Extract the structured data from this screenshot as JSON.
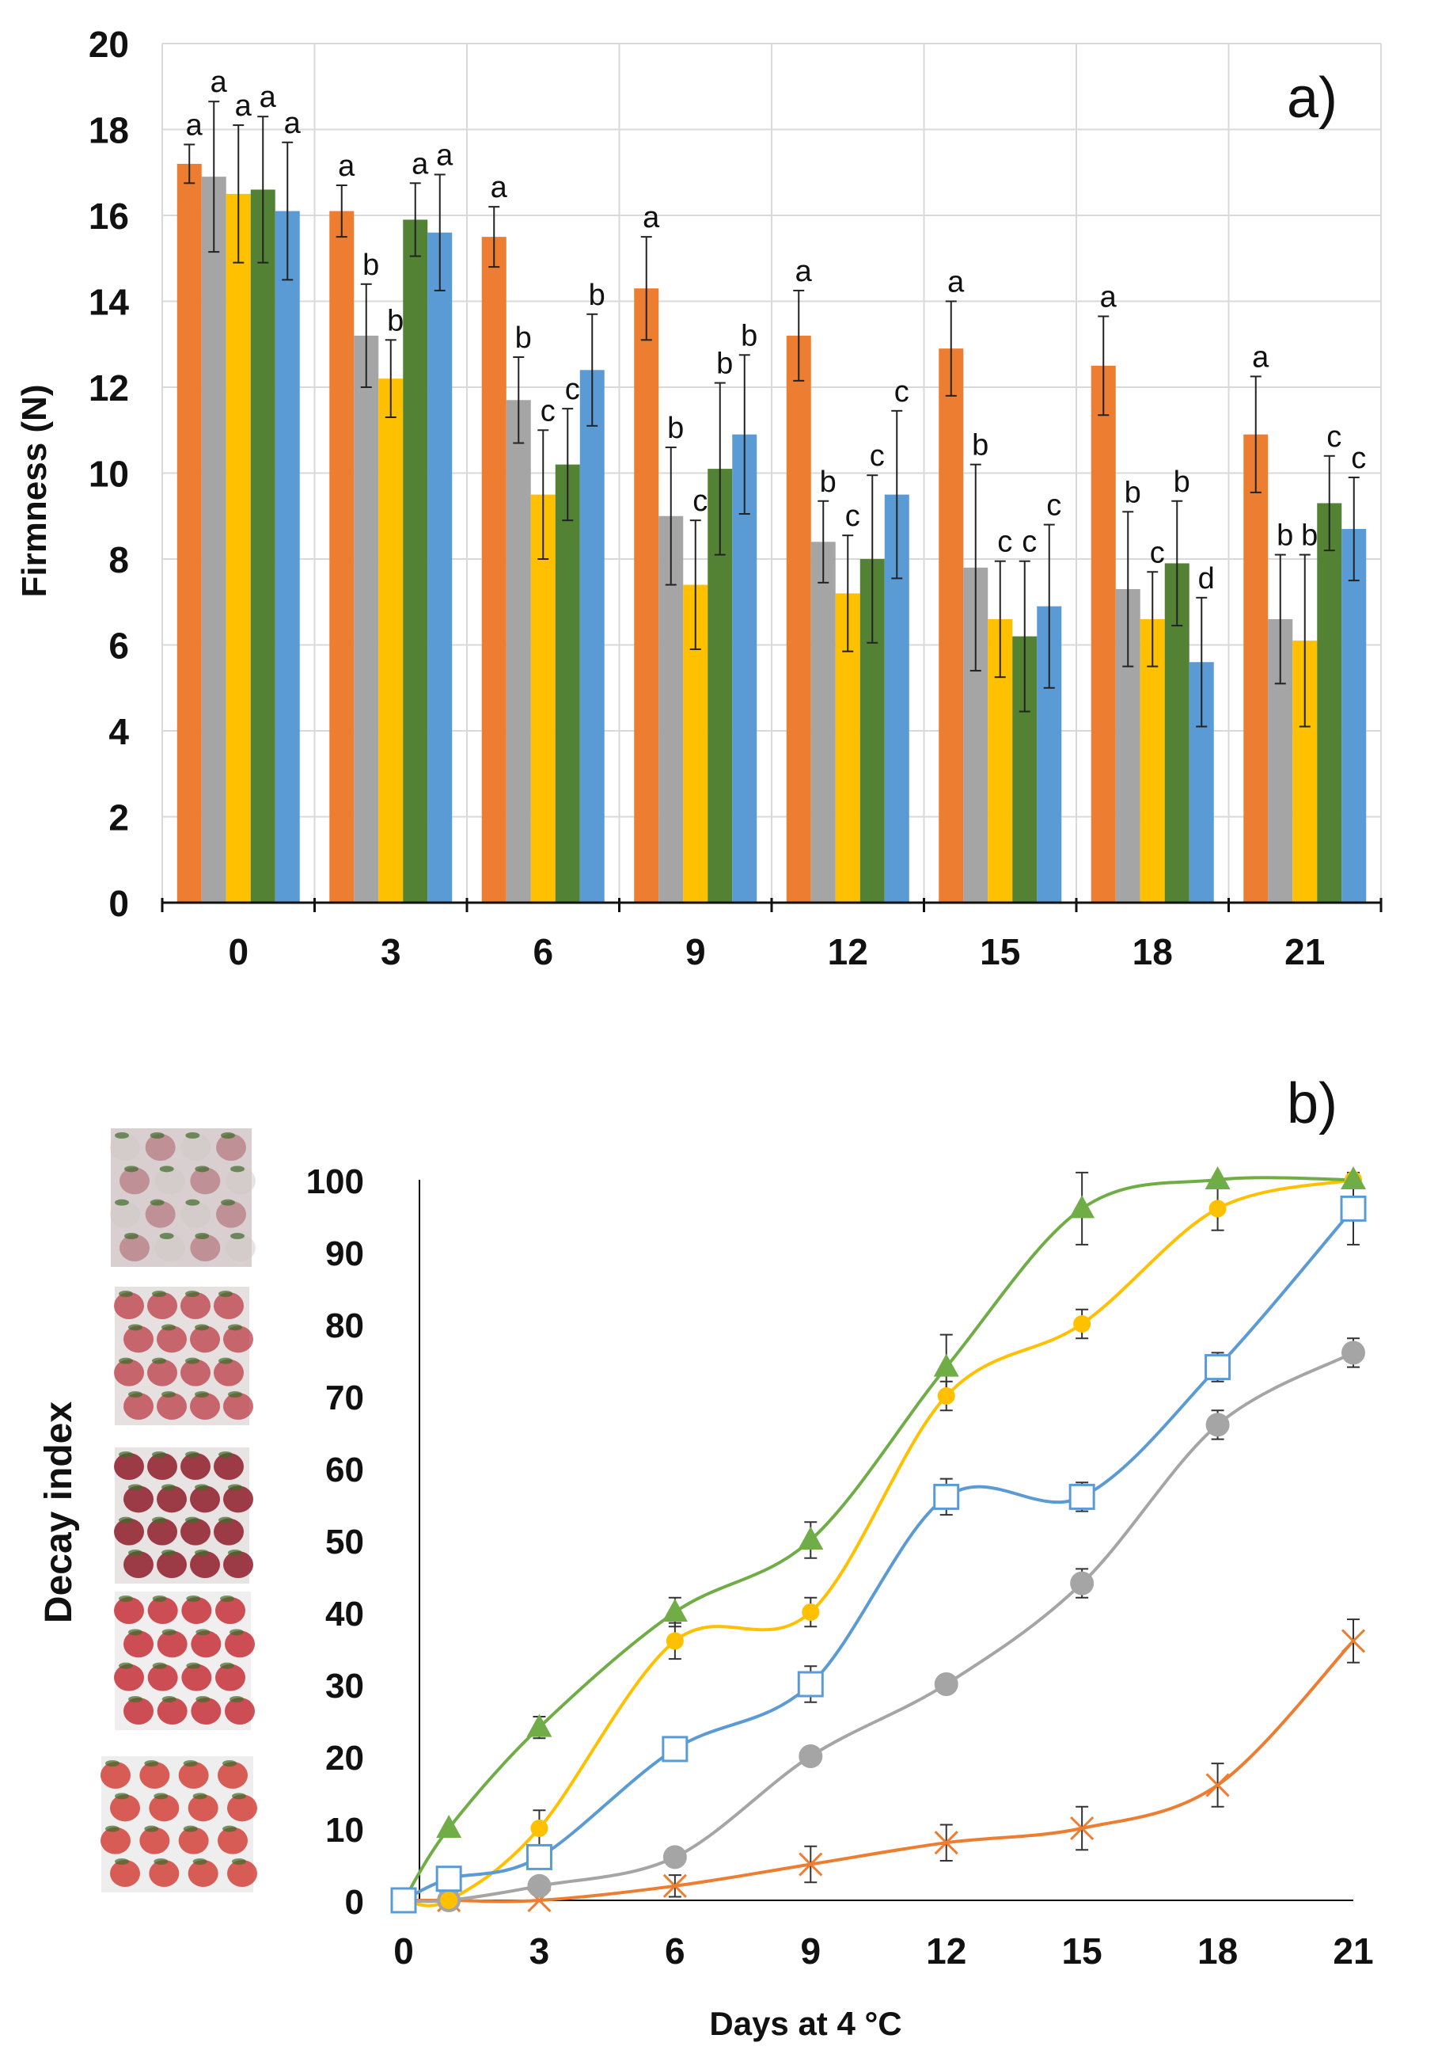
{
  "figure": {
    "panel_a_label": "a)",
    "panel_b_label": "b)"
  },
  "colors": {
    "orange": "#ED7D31",
    "gray": "#A5A5A5",
    "yellow": "#FFC000",
    "green": "#548235",
    "blue": "#5B9BD5",
    "green_line": "#70AD47",
    "grid": "#D9D9D9"
  },
  "chart_data": [
    {
      "type": "bar",
      "title": "a)",
      "xlabel": "",
      "ylabel": "Firmness (N)",
      "ylim": [
        0,
        20
      ],
      "yticks": [
        "0",
        "2",
        "4",
        "6",
        "8",
        "10",
        "12",
        "14",
        "16",
        "18",
        "20"
      ],
      "categories": [
        "0",
        "3",
        "6",
        "9",
        "12",
        "15",
        "18",
        "21"
      ],
      "grid": true,
      "series": [
        {
          "name": "series-1",
          "color": "#ED7D31",
          "values": [
            17.2,
            16.1,
            15.5,
            14.3,
            13.2,
            12.9,
            12.5,
            10.9
          ],
          "errors": [
            0.45,
            0.6,
            0.7,
            1.2,
            1.05,
            1.1,
            1.15,
            1.35
          ],
          "letters": [
            "a",
            "a",
            "a",
            "a",
            "a",
            "a",
            "a",
            "a"
          ]
        },
        {
          "name": "series-2",
          "color": "#A5A5A5",
          "values": [
            16.9,
            13.2,
            11.7,
            9.0,
            8.4,
            7.8,
            7.3,
            6.6
          ],
          "errors": [
            1.75,
            1.2,
            1.0,
            1.6,
            0.95,
            2.4,
            1.8,
            1.5
          ],
          "letters": [
            "a",
            "b",
            "b",
            "b",
            "b",
            "b",
            "b",
            "b"
          ]
        },
        {
          "name": "series-3",
          "color": "#FFC000",
          "values": [
            16.5,
            12.2,
            9.5,
            7.4,
            7.2,
            6.6,
            6.6,
            6.1
          ],
          "errors": [
            1.6,
            0.9,
            1.5,
            1.5,
            1.35,
            1.35,
            1.1,
            2.0
          ],
          "letters": [
            "a",
            "b",
            "c",
            "c",
            "c",
            "c",
            "c",
            "b"
          ]
        },
        {
          "name": "series-4",
          "color": "#548235",
          "values": [
            16.6,
            15.9,
            10.2,
            10.1,
            8.0,
            6.2,
            7.9,
            9.3
          ],
          "errors": [
            1.7,
            0.85,
            1.3,
            2.0,
            1.95,
            1.75,
            1.45,
            1.1
          ],
          "letters": [
            "a",
            "a",
            "c",
            "b",
            "c",
            "c",
            "b",
            "c"
          ]
        },
        {
          "name": "series-5",
          "color": "#5B9BD5",
          "values": [
            16.1,
            15.6,
            12.4,
            10.9,
            9.5,
            6.9,
            5.6,
            8.7
          ],
          "errors": [
            1.6,
            1.35,
            1.3,
            1.85,
            1.95,
            1.9,
            1.5,
            1.2
          ],
          "letters": [
            "a",
            "a",
            "b",
            "b",
            "c",
            "c",
            "d",
            "c"
          ]
        }
      ]
    },
    {
      "type": "line",
      "title": "b)",
      "xlabel": "Days at 4 °C",
      "ylabel": "Decay index",
      "ylim": [
        0,
        100
      ],
      "xlim": [
        0,
        21
      ],
      "yticks": [
        "0",
        "10",
        "20",
        "30",
        "40",
        "50",
        "60",
        "70",
        "80",
        "90",
        "100"
      ],
      "xticks": [
        "0",
        "3",
        "6",
        "9",
        "12",
        "15",
        "18",
        "21"
      ],
      "x": [
        0,
        1,
        3,
        6,
        9,
        12,
        15,
        18,
        21
      ],
      "grid": false,
      "series": [
        {
          "name": "series-1",
          "marker": "x",
          "color": "#ED7D31",
          "values": [
            0,
            0,
            0,
            2,
            5,
            8,
            10,
            16,
            36
          ],
          "errors": [
            0,
            0,
            0,
            1.5,
            2.5,
            2.5,
            3,
            3,
            3
          ]
        },
        {
          "name": "series-2",
          "marker": "circle",
          "color": "#A5A5A5",
          "values": [
            0,
            0,
            2,
            6,
            20,
            30,
            44,
            66,
            76
          ],
          "errors": [
            0,
            0,
            0,
            0,
            0,
            0,
            2,
            2,
            2
          ]
        },
        {
          "name": "series-3",
          "marker": "dot",
          "color": "#FFC000",
          "values": [
            0,
            0,
            10,
            36,
            40,
            70,
            80,
            96,
            100
          ],
          "errors": [
            0,
            0,
            2.5,
            2.5,
            2,
            2,
            2,
            3,
            0
          ]
        },
        {
          "name": "series-4",
          "marker": "triangle",
          "color": "#70AD47",
          "values": [
            0,
            10,
            24,
            40,
            50,
            74,
            96,
            100,
            100
          ],
          "errors": [
            0,
            0,
            1.5,
            2,
            2.5,
            4.5,
            5,
            0,
            0
          ]
        },
        {
          "name": "series-5",
          "marker": "square",
          "color": "#5B9BD5",
          "values": [
            0,
            3,
            6,
            21,
            30,
            56,
            56,
            74,
            96
          ],
          "errors": [
            0,
            0,
            1.5,
            1.5,
            2.5,
            2.5,
            2,
            2,
            5
          ]
        }
      ]
    }
  ]
}
